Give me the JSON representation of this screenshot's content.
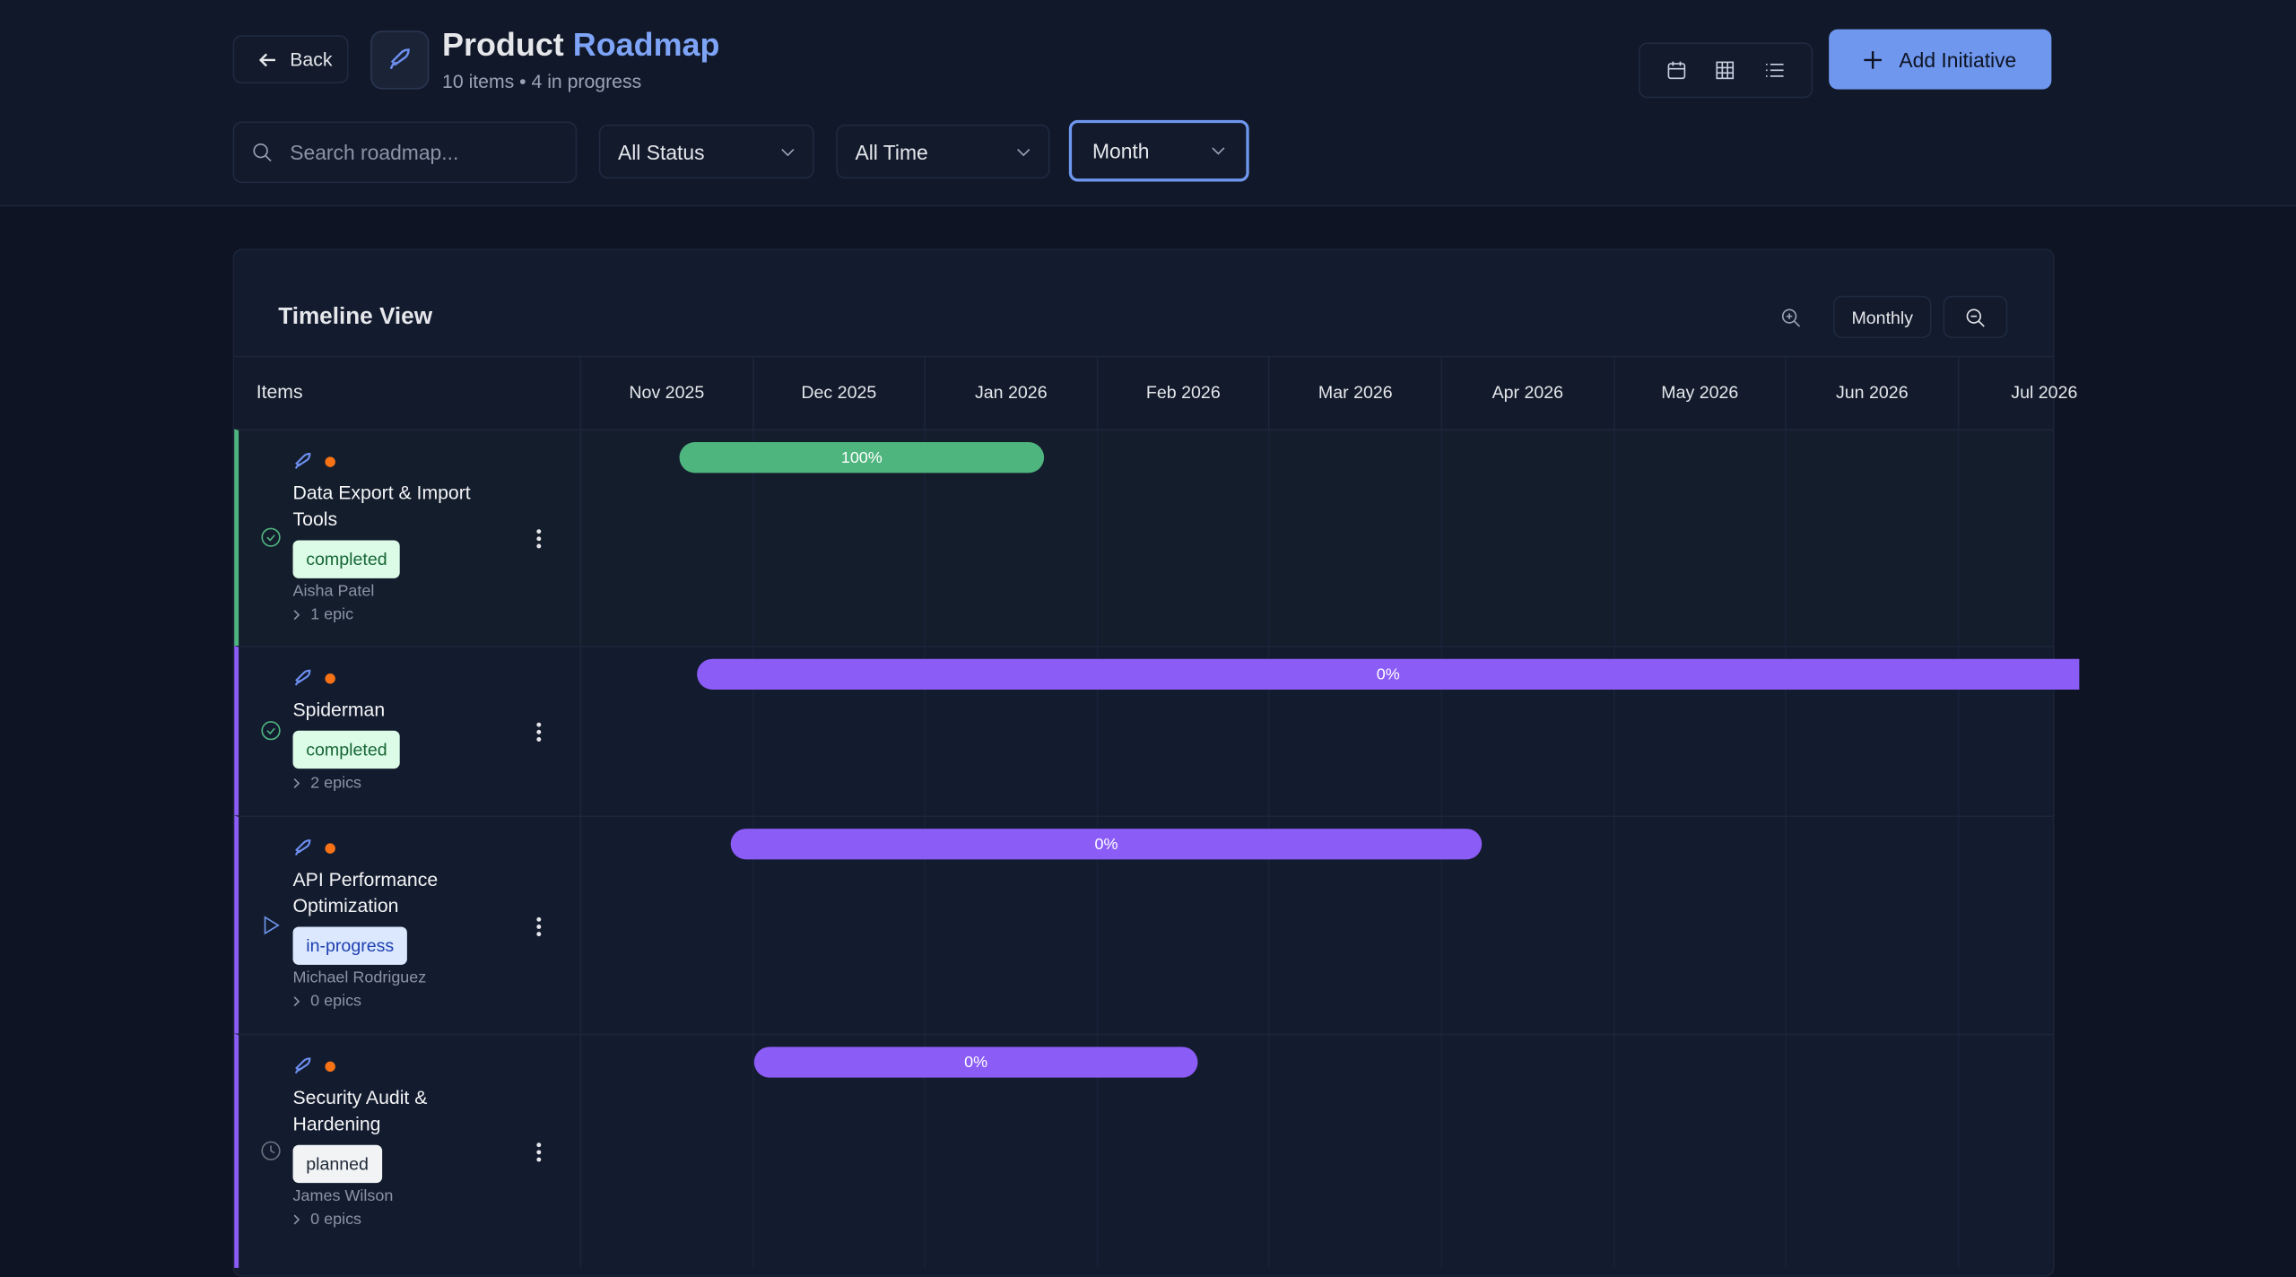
{
  "header": {
    "back": "Back",
    "title": "Product",
    "title_highlight": "Roadmap",
    "subtitle": "10 items • 4 in progress",
    "add_button": "Add Initiative"
  },
  "filters": {
    "search_placeholder": "Search roadmap...",
    "status": "All Status",
    "time": "All Time",
    "granularity": "Month"
  },
  "timeline": {
    "title": "Timeline View",
    "zoom_label": "Monthly",
    "items_header": "Items",
    "months": [
      "Nov 2025",
      "Dec 2025",
      "Jan 2026",
      "Feb 2026",
      "Mar 2026",
      "Apr 2026",
      "May 2026",
      "Jun 2026",
      "Jul 2026"
    ],
    "rows": [
      {
        "name": "Data Export & Import Tools",
        "status": "completed",
        "owner": "Aisha Patel",
        "epics": "1 epic",
        "progress": "100%"
      },
      {
        "name": "Spiderman",
        "status": "completed",
        "epics": "2 epics",
        "progress": "0%"
      },
      {
        "name": "API Performance Optimization",
        "status": "in-progress",
        "owner": "Michael Rodriguez",
        "epics": "0 epics",
        "progress": "0%"
      },
      {
        "name": "Security Audit & Hardening",
        "status": "planned",
        "owner": "James Wilson",
        "epics": "0 epics",
        "progress": "0%"
      }
    ]
  }
}
